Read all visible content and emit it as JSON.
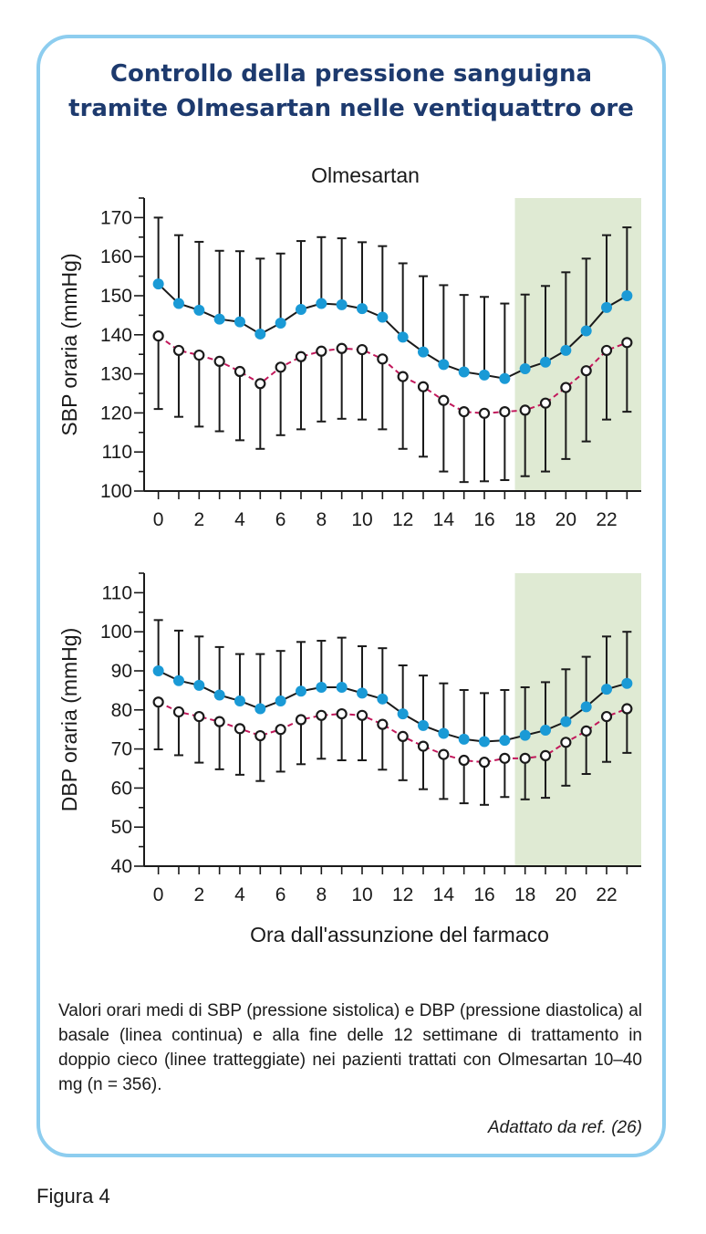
{
  "title": {
    "line1": "Controllo della pressione sanguigna",
    "line2": "tramite Olmesartan nelle ventiquattro ore"
  },
  "caption": "Valori orari medi di SBP (pressione sistolica) e DBP (pressione diastolica) al basale (linea continua) e alla fine delle 12 settimane di trattamento in doppio cieco (linee tratteggiate) nei pazienti trattati con Olmesartan 10–40 mg (n = 356).",
  "source": "Adattato da ref. (26)",
  "figure_label": "Figura 4",
  "colors": {
    "frame": "#8dcdef",
    "title": "#1d3a6e",
    "baseline_marker": "#1a9ad6",
    "treated_line": "#c2185b",
    "shade": "#dfead3"
  },
  "chart_data": [
    {
      "type": "line",
      "title": "Olmesartan",
      "xlabel": "",
      "ylabel": "SBP oraria (mmHg)",
      "ylim": [
        100,
        175
      ],
      "yticks": [
        100,
        110,
        120,
        130,
        140,
        150,
        160,
        170
      ],
      "xlim": [
        -0.7,
        23.7
      ],
      "xticks": [
        0,
        2,
        4,
        6,
        8,
        10,
        12,
        14,
        16,
        18,
        20,
        22
      ],
      "shaded_x": [
        17.5,
        23.7
      ],
      "x": [
        0,
        1,
        2,
        3,
        4,
        5,
        6,
        7,
        8,
        9,
        10,
        11,
        12,
        13,
        14,
        15,
        16,
        17,
        18,
        19,
        20,
        21,
        22,
        23
      ],
      "series": [
        {
          "style": "solid-filled",
          "values": [
            153,
            148,
            146.3,
            144,
            143.3,
            140.2,
            143,
            146.5,
            148,
            147.7,
            146.7,
            144.5,
            139.4,
            135.6,
            132.4,
            130.5,
            129.7,
            128.8,
            131.3,
            133,
            136,
            141,
            147,
            150
          ],
          "err_upper": [
            170,
            165.5,
            163.8,
            161.5,
            161.4,
            159.5,
            160.8,
            164,
            165,
            164.7,
            163.7,
            162.7,
            158.3,
            155,
            152.7,
            150.2,
            149.7,
            148,
            150.3,
            152.5,
            156,
            159.5,
            165.5,
            167.5
          ]
        },
        {
          "style": "dashed-open",
          "values": [
            139.7,
            136,
            134.8,
            133.2,
            130.6,
            127.5,
            131.7,
            134.4,
            135.8,
            136.5,
            136.2,
            133.8,
            129.3,
            126.7,
            123.2,
            120.3,
            119.9,
            120.3,
            120.7,
            122.5,
            126.5,
            130.8,
            136,
            138
          ],
          "err_lower": [
            121,
            119,
            116.5,
            115.3,
            113,
            110.8,
            114.3,
            115.8,
            117.8,
            118.5,
            118.3,
            115.8,
            110.8,
            108.8,
            105,
            102.3,
            102.5,
            102.8,
            103.8,
            105,
            108.2,
            112.7,
            118.3,
            120.3
          ]
        }
      ]
    },
    {
      "type": "line",
      "title": "",
      "xlabel": "Ora dall'assunzione del farmaco",
      "ylabel": "DBP oraria (mmHg)",
      "ylim": [
        40,
        115
      ],
      "yticks": [
        40,
        50,
        60,
        70,
        80,
        90,
        100,
        110
      ],
      "xlim": [
        -0.7,
        23.7
      ],
      "xticks": [
        0,
        2,
        4,
        6,
        8,
        10,
        12,
        14,
        16,
        18,
        20,
        22
      ],
      "shaded_x": [
        17.5,
        23.7
      ],
      "x": [
        0,
        1,
        2,
        3,
        4,
        5,
        6,
        7,
        8,
        9,
        10,
        11,
        12,
        13,
        14,
        15,
        16,
        17,
        18,
        19,
        20,
        21,
        22,
        23
      ],
      "series": [
        {
          "style": "solid-filled",
          "values": [
            90,
            87.5,
            86.3,
            83.8,
            82.3,
            80.3,
            82.3,
            84.8,
            85.8,
            85.8,
            84.3,
            82.8,
            79,
            76,
            74,
            72.5,
            71.9,
            72.2,
            73.5,
            74.8,
            77,
            80.8,
            85.3,
            86.8
          ],
          "err_upper": [
            103,
            100.3,
            98.8,
            96.1,
            94.3,
            94.3,
            95.1,
            97.4,
            97.7,
            98.5,
            96.3,
            95.8,
            91.4,
            88.8,
            86.8,
            85.1,
            84.3,
            85.1,
            85.8,
            87.1,
            90.4,
            93.6,
            98.8,
            100
          ]
        },
        {
          "style": "dashed-open",
          "values": [
            82,
            79.5,
            78.3,
            77,
            75.2,
            73.4,
            75,
            77.5,
            78.6,
            79,
            78.6,
            76.3,
            73.2,
            70.7,
            68.6,
            67.1,
            66.6,
            67.6,
            67.6,
            68.3,
            71.7,
            74.6,
            78.3,
            80.3
          ],
          "err_lower": [
            69.9,
            68.4,
            66.5,
            64.8,
            63.4,
            61.8,
            64.2,
            66.1,
            67.5,
            67.1,
            67.1,
            64.7,
            62,
            59.7,
            57.2,
            56.1,
            55.7,
            57.7,
            57.1,
            57.5,
            60.6,
            63.6,
            66.7,
            69
          ]
        }
      ]
    }
  ]
}
